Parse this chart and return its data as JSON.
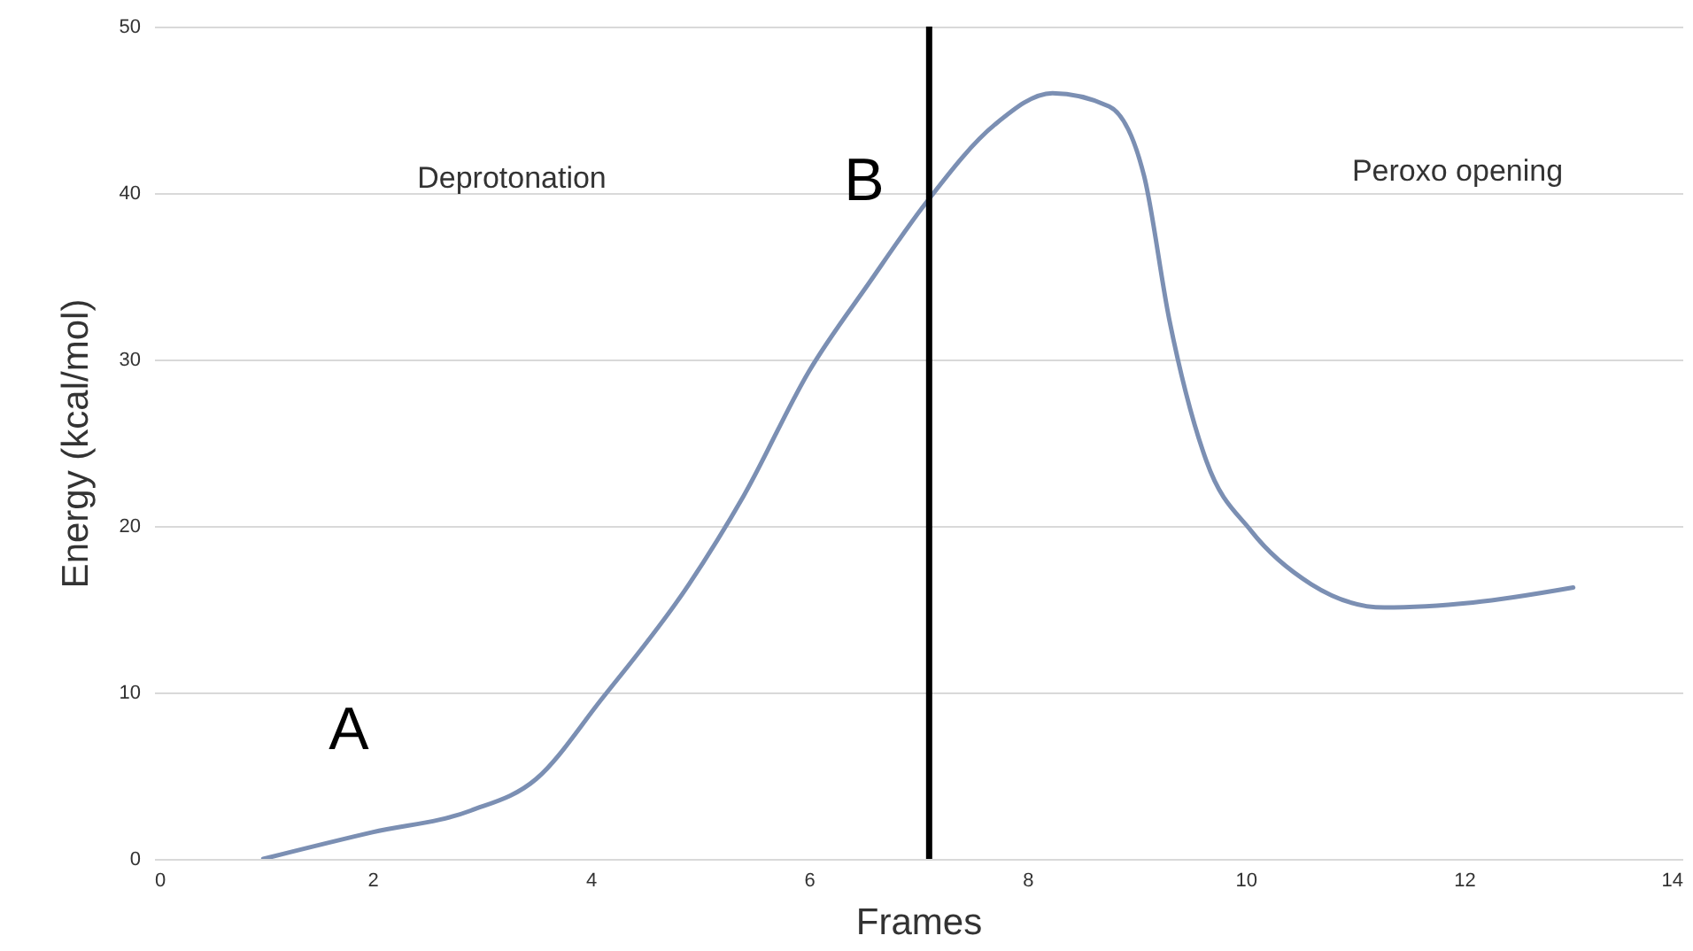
{
  "chart_data": {
    "type": "line",
    "xlabel": "Frames",
    "ylabel": "Energy (kcal/mol)",
    "x": [
      1.0,
      2.0,
      2.9,
      3.5,
      4.1,
      4.9,
      5.4,
      6.0,
      6.55,
      7.07,
      7.7,
      8.23,
      8.75,
      9.07,
      9.3,
      9.64,
      10.05,
      10.6,
      11.27,
      12.08,
      13.0
    ],
    "series": [
      {
        "color": "#7b8fb3",
        "values": [
          0,
          1.6,
          2.9,
          4.8,
          9.6,
          16.5,
          21.8,
          29.3,
          34.6,
          39.4,
          44.1,
          46.0,
          45.2,
          41.0,
          32.4,
          23.9,
          19.7,
          16.5,
          15.1,
          15.4,
          16.3
        ]
      }
    ],
    "xlim": [
      0,
      14
    ],
    "xticks": [
      0,
      2,
      4,
      6,
      8,
      10,
      12,
      14
    ],
    "ylim": [
      0,
      50
    ],
    "yticks": [
      0,
      10,
      20,
      30,
      40,
      50
    ],
    "grid": "y",
    "marker": "none",
    "line_style": "solid",
    "ref_lines": [
      {
        "axis": "x",
        "value": 7.1,
        "color": "#000000"
      }
    ],
    "annotations": [
      "Deprotonation",
      "B",
      "Peroxo opening",
      "A"
    ]
  }
}
